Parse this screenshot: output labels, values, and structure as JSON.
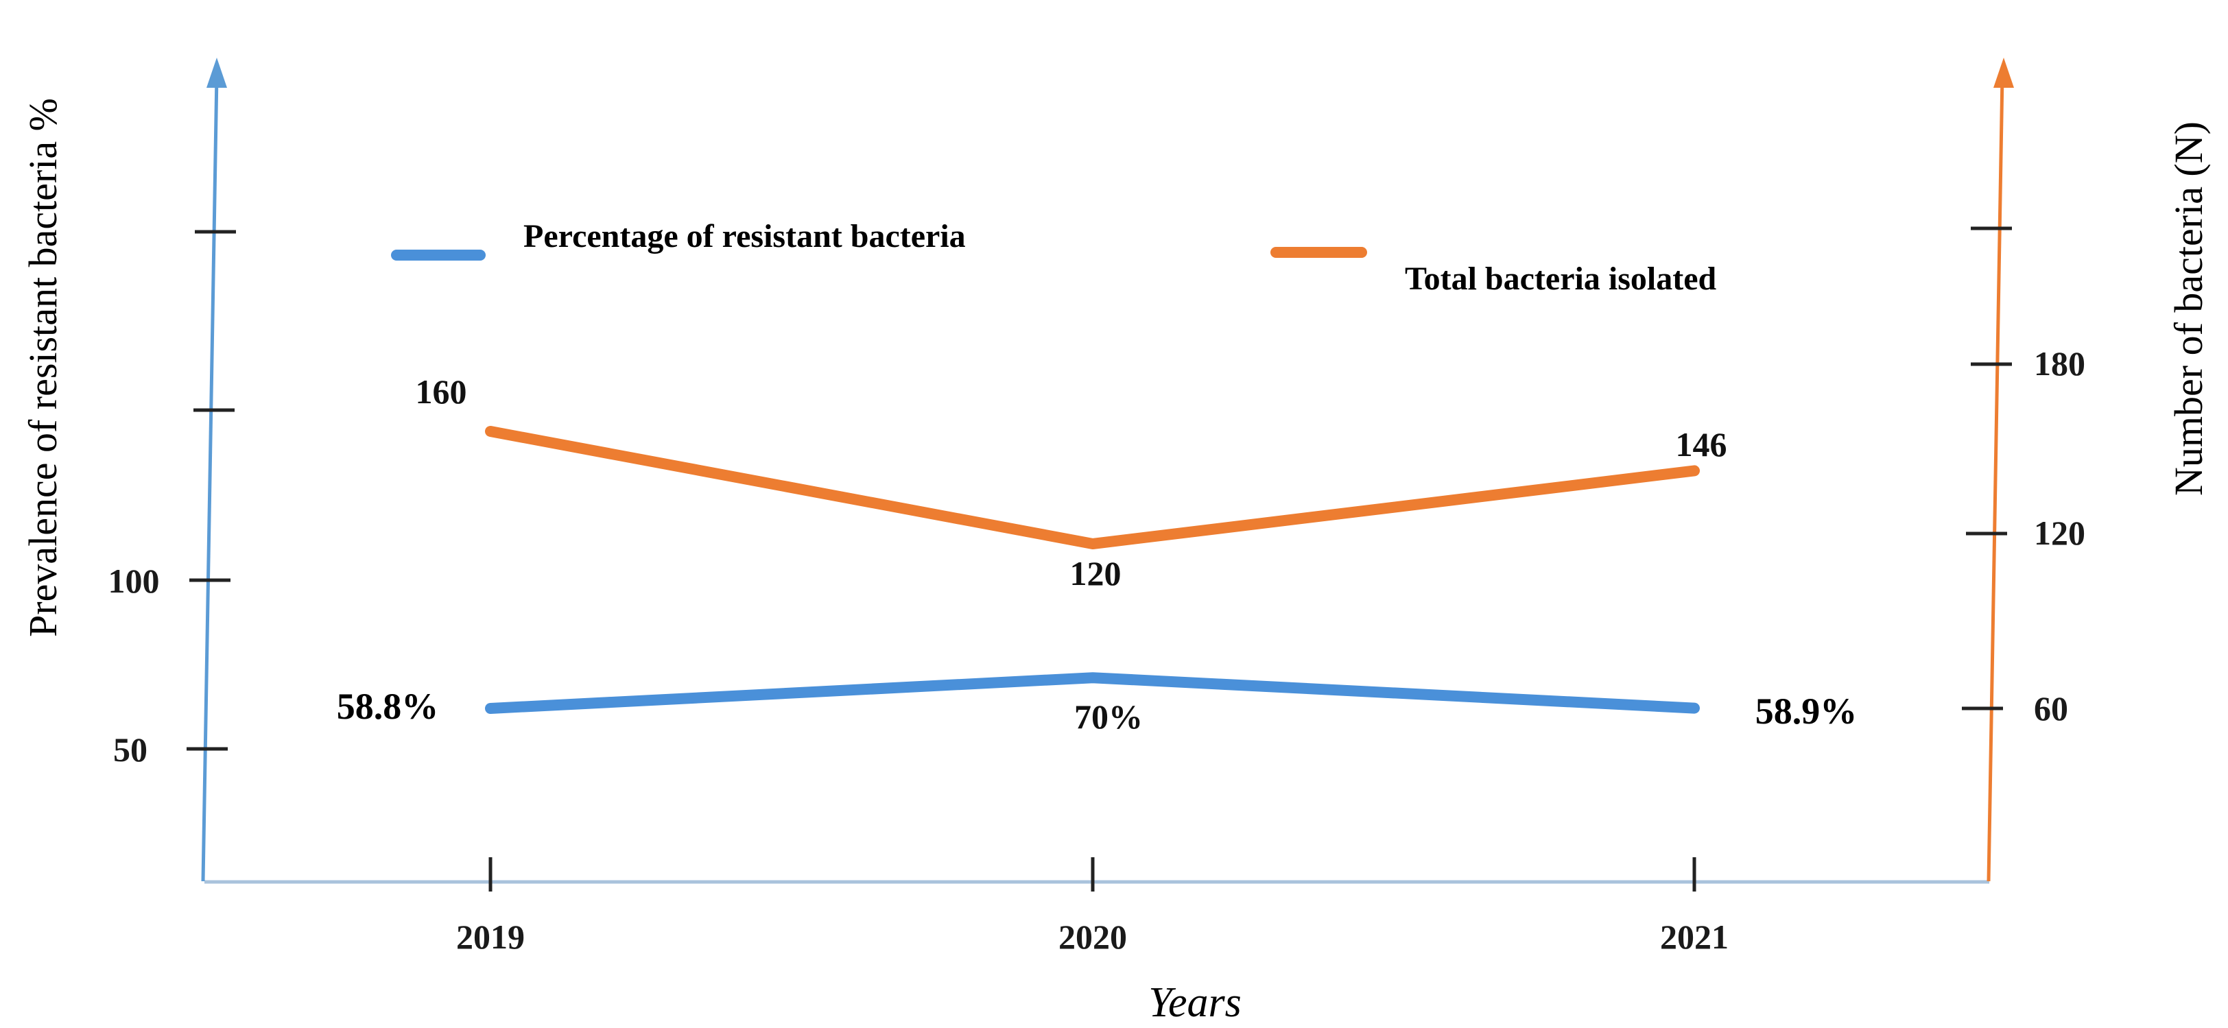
{
  "chart_data": {
    "type": "line",
    "x": [
      "2019",
      "2020",
      "2021"
    ],
    "xlabel": "Years",
    "y_left_label": "Prevalence of resistant bacteria %",
    "y_right_label": "Number of bacteria (N)",
    "y_left_ticks": [
      "50",
      "100"
    ],
    "y_right_ticks": [
      "60",
      "120",
      "180"
    ],
    "series": [
      {
        "name": "Percentage of resistant bacteria",
        "axis": "left",
        "color": "#4a90d9",
        "values": [
          58.8,
          70,
          58.9
        ],
        "labels": [
          "58.8%",
          "70%",
          "58.9%"
        ]
      },
      {
        "name": "Total bacteria isolated",
        "axis": "right",
        "color": "#ed7d31",
        "values": [
          160,
          120,
          146
        ],
        "labels": [
          "160",
          "120",
          "146"
        ]
      }
    ]
  }
}
